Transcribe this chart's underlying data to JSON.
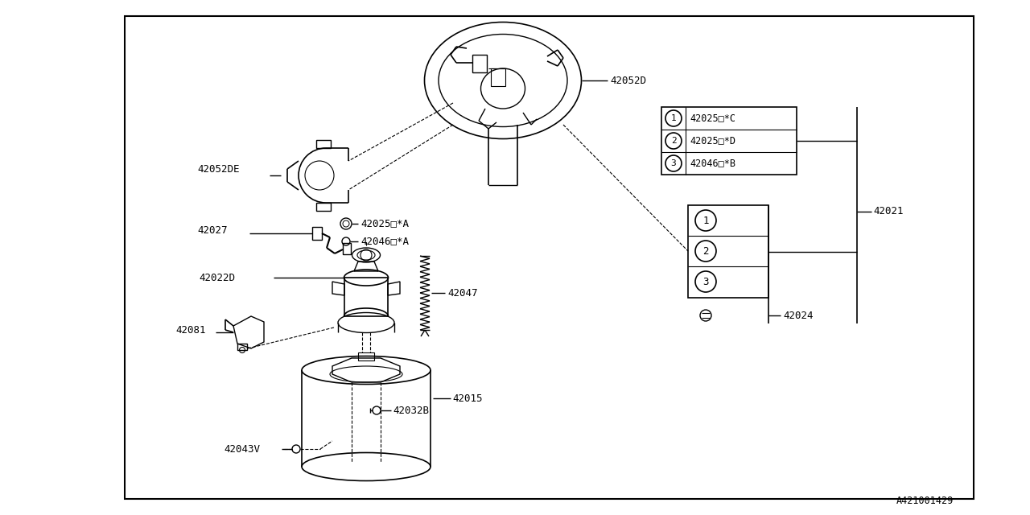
{
  "bg": "#ffffff",
  "lc": "#000000",
  "footer": "A421001429",
  "legend_codes": [
    "42025□*C",
    "42025□*D",
    "42046□*B"
  ],
  "border": [
    155,
    20,
    1055,
    600
  ]
}
